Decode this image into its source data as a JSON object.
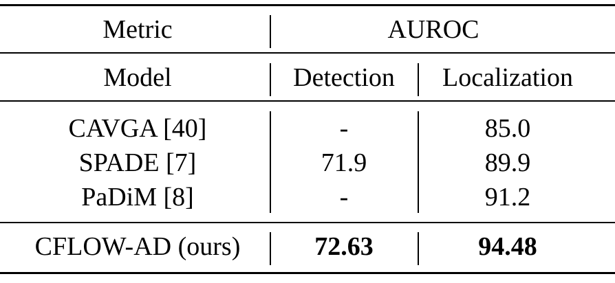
{
  "caption_fragment": "",
  "table": {
    "metric_label": "Metric",
    "auroc_label": "AUROC",
    "model_label": "Model",
    "detection_label": "Detection",
    "localization_label": "Localization",
    "rows": [
      {
        "model": "CAVGA [40]",
        "detection": "-",
        "localization": "85.0"
      },
      {
        "model": "SPADE [7]",
        "detection": "71.9",
        "localization": "89.9"
      },
      {
        "model": "PaDiM [8]",
        "detection": "-",
        "localization": "91.2"
      }
    ],
    "ours": {
      "model": "CFLOW-AD (ours)",
      "detection": "72.63",
      "localization": "94.48"
    }
  }
}
